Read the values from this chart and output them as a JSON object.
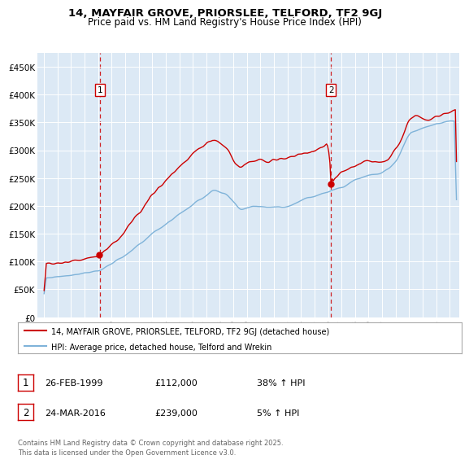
{
  "title": "14, MAYFAIR GROVE, PRIORSLEE, TELFORD, TF2 9GJ",
  "subtitle": "Price paid vs. HM Land Registry's House Price Index (HPI)",
  "bg_color": "#dce9f5",
  "red_color": "#cc0000",
  "blue_color": "#7fb3d9",
  "vline_color": "#cc0000",
  "sale1_date_num": 1999.12,
  "sale1_price": 112000,
  "sale2_date_num": 2016.22,
  "sale2_price": 239000,
  "ylim": [
    0,
    475000
  ],
  "yticks": [
    0,
    50000,
    100000,
    150000,
    200000,
    250000,
    300000,
    350000,
    400000,
    450000
  ],
  "ytick_labels": [
    "£0",
    "£50K",
    "£100K",
    "£150K",
    "£200K",
    "£250K",
    "£300K",
    "£350K",
    "£400K",
    "£450K"
  ],
  "legend_line1": "14, MAYFAIR GROVE, PRIORSLEE, TELFORD, TF2 9GJ (detached house)",
  "legend_line2": "HPI: Average price, detached house, Telford and Wrekin",
  "footnote": "Contains HM Land Registry data © Crown copyright and database right 2025.\nThis data is licensed under the Open Government Licence v3.0.",
  "table_rows": [
    [
      "1",
      "26-FEB-1999",
      "£112,000",
      "38% ↑ HPI"
    ],
    [
      "2",
      "24-MAR-2016",
      "£239,000",
      "5% ↑ HPI"
    ]
  ],
  "xlim_left": 1994.5,
  "xlim_right": 2025.7
}
